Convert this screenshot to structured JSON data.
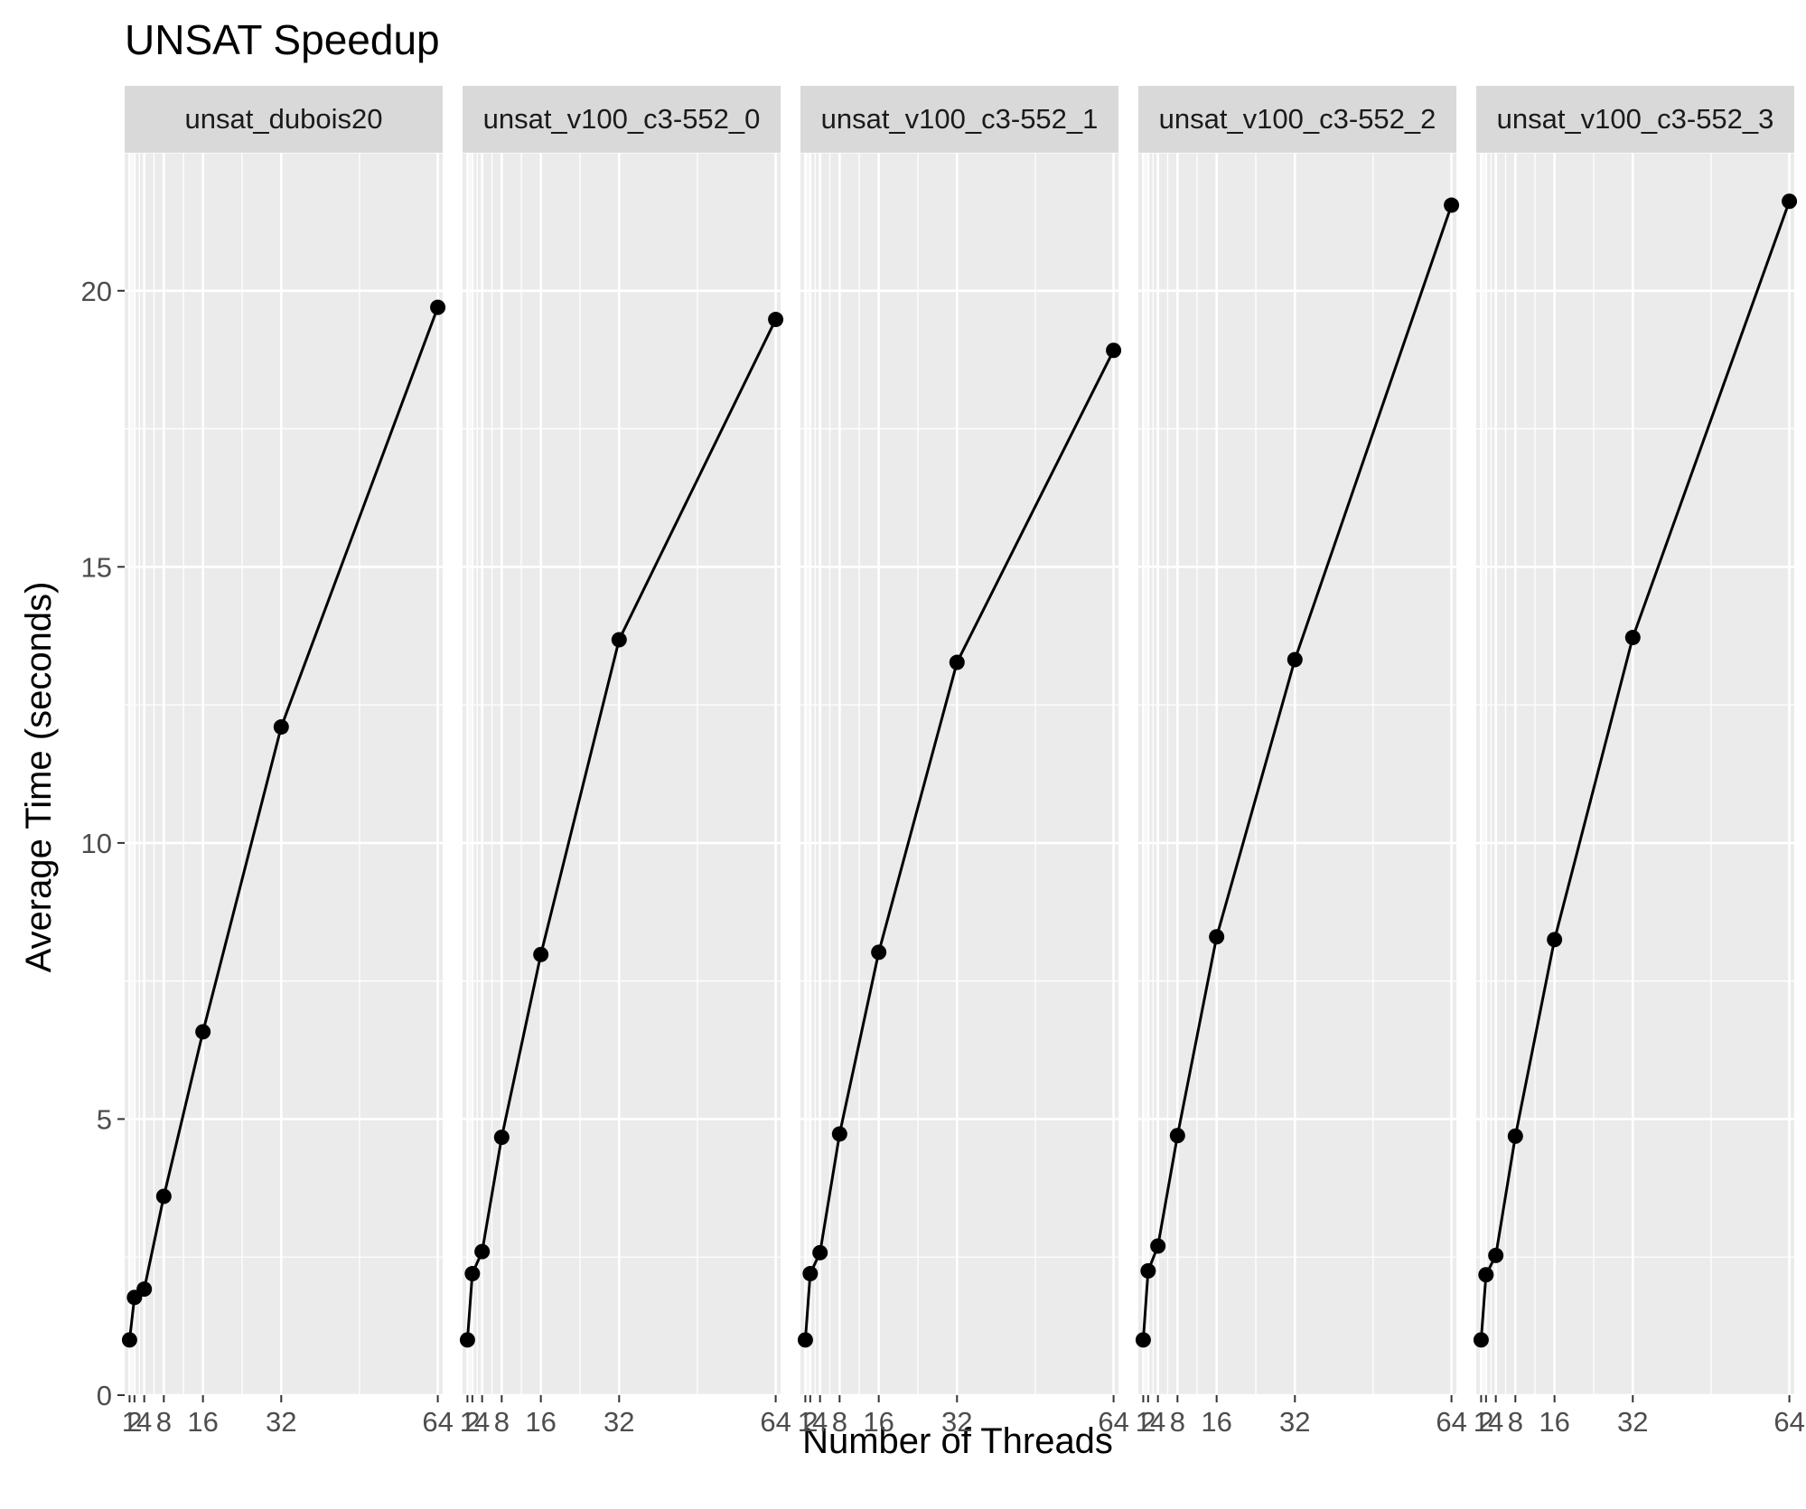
{
  "chart_data": {
    "type": "line",
    "title": "UNSAT Speedup",
    "xlabel": "Number of Threads",
    "ylabel": "Average Time (seconds)",
    "xlim": [
      0,
      65
    ],
    "ylim": [
      0,
      22.5
    ],
    "x_ticks": [
      1,
      2,
      4,
      8,
      16,
      32,
      64
    ],
    "x_tick_labels": [
      "1",
      "2",
      "4",
      "8",
      "16",
      "32",
      "64"
    ],
    "y_ticks": [
      0,
      5,
      10,
      15,
      20
    ],
    "y_tick_labels": [
      "0",
      "5",
      "10",
      "15",
      "20"
    ],
    "grid": true,
    "legend": "none",
    "facets": [
      {
        "strip": "unsat_dubois20",
        "x": [
          1,
          2,
          4,
          8,
          16,
          32,
          64
        ],
        "y": [
          1.0,
          1.77,
          1.92,
          3.6,
          6.58,
          12.1,
          19.7
        ]
      },
      {
        "strip": "unsat_v100_c3-552_0",
        "x": [
          1,
          2,
          4,
          8,
          16,
          32,
          64
        ],
        "y": [
          1.0,
          2.2,
          2.6,
          4.67,
          7.98,
          13.68,
          19.48
        ]
      },
      {
        "strip": "unsat_v100_c3-552_1",
        "x": [
          1,
          2,
          4,
          8,
          16,
          32,
          64
        ],
        "y": [
          1.0,
          2.2,
          2.58,
          4.73,
          8.02,
          13.27,
          18.92
        ]
      },
      {
        "strip": "unsat_v100_c3-552_2",
        "x": [
          1,
          2,
          4,
          8,
          16,
          32,
          64
        ],
        "y": [
          1.0,
          2.25,
          2.7,
          4.7,
          8.3,
          13.32,
          21.55
        ]
      },
      {
        "strip": "unsat_v100_c3-552_3",
        "x": [
          1,
          2,
          4,
          8,
          16,
          32,
          64
        ],
        "y": [
          1.0,
          2.18,
          2.53,
          4.69,
          8.25,
          13.72,
          21.62
        ]
      }
    ]
  }
}
